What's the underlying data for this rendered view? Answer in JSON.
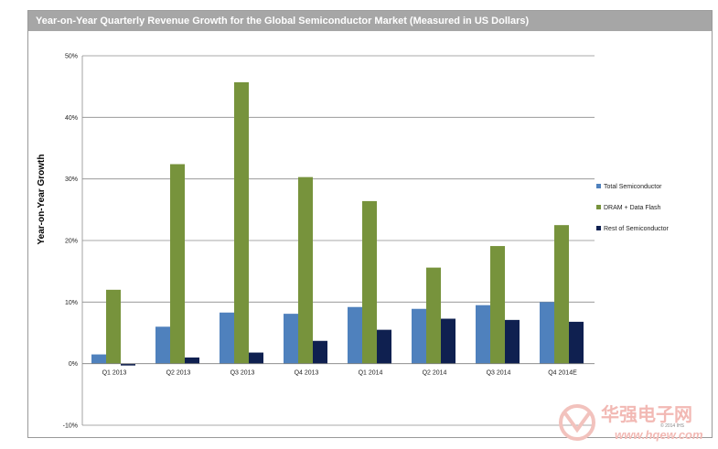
{
  "chart_data": {
    "type": "bar",
    "title": "Year-on-Year Quarterly Revenue Growth for the Global Semiconductor Market (Measured in US Dollars)",
    "xlabel": "",
    "ylabel": "Year-on-Year Growth",
    "ylim": [
      -10,
      50
    ],
    "yticks": [
      -10,
      0,
      10,
      20,
      30,
      40,
      50
    ],
    "ytick_labels": [
      "-10%",
      "0%",
      "10%",
      "20%",
      "30%",
      "40%",
      "50%"
    ],
    "grid": true,
    "legend_position": "right",
    "categories": [
      "Q1 2013",
      "Q2 2013",
      "Q3 2013",
      "Q4 2013",
      "Q1 2014",
      "Q2 2014",
      "Q3 2014",
      "Q4 2014E"
    ],
    "series": [
      {
        "name": "Total Semiconductor",
        "color": "#4f81bd",
        "values": [
          1.5,
          6.0,
          8.3,
          8.1,
          9.2,
          8.9,
          9.5,
          10.0
        ]
      },
      {
        "name": "DRAM + Data Flash",
        "color": "#77933c",
        "values": [
          12.0,
          32.4,
          45.7,
          30.3,
          26.4,
          15.6,
          19.1,
          22.5
        ]
      },
      {
        "name": "Rest of Semiconductor",
        "color": "#0f2050",
        "values": [
          -0.3,
          1.0,
          1.8,
          3.7,
          5.5,
          7.3,
          7.1,
          6.8
        ]
      }
    ]
  },
  "watermark": {
    "brand": "华强电子网",
    "url": "www.hqew.com",
    "copyright": "© 2014 IHS"
  }
}
